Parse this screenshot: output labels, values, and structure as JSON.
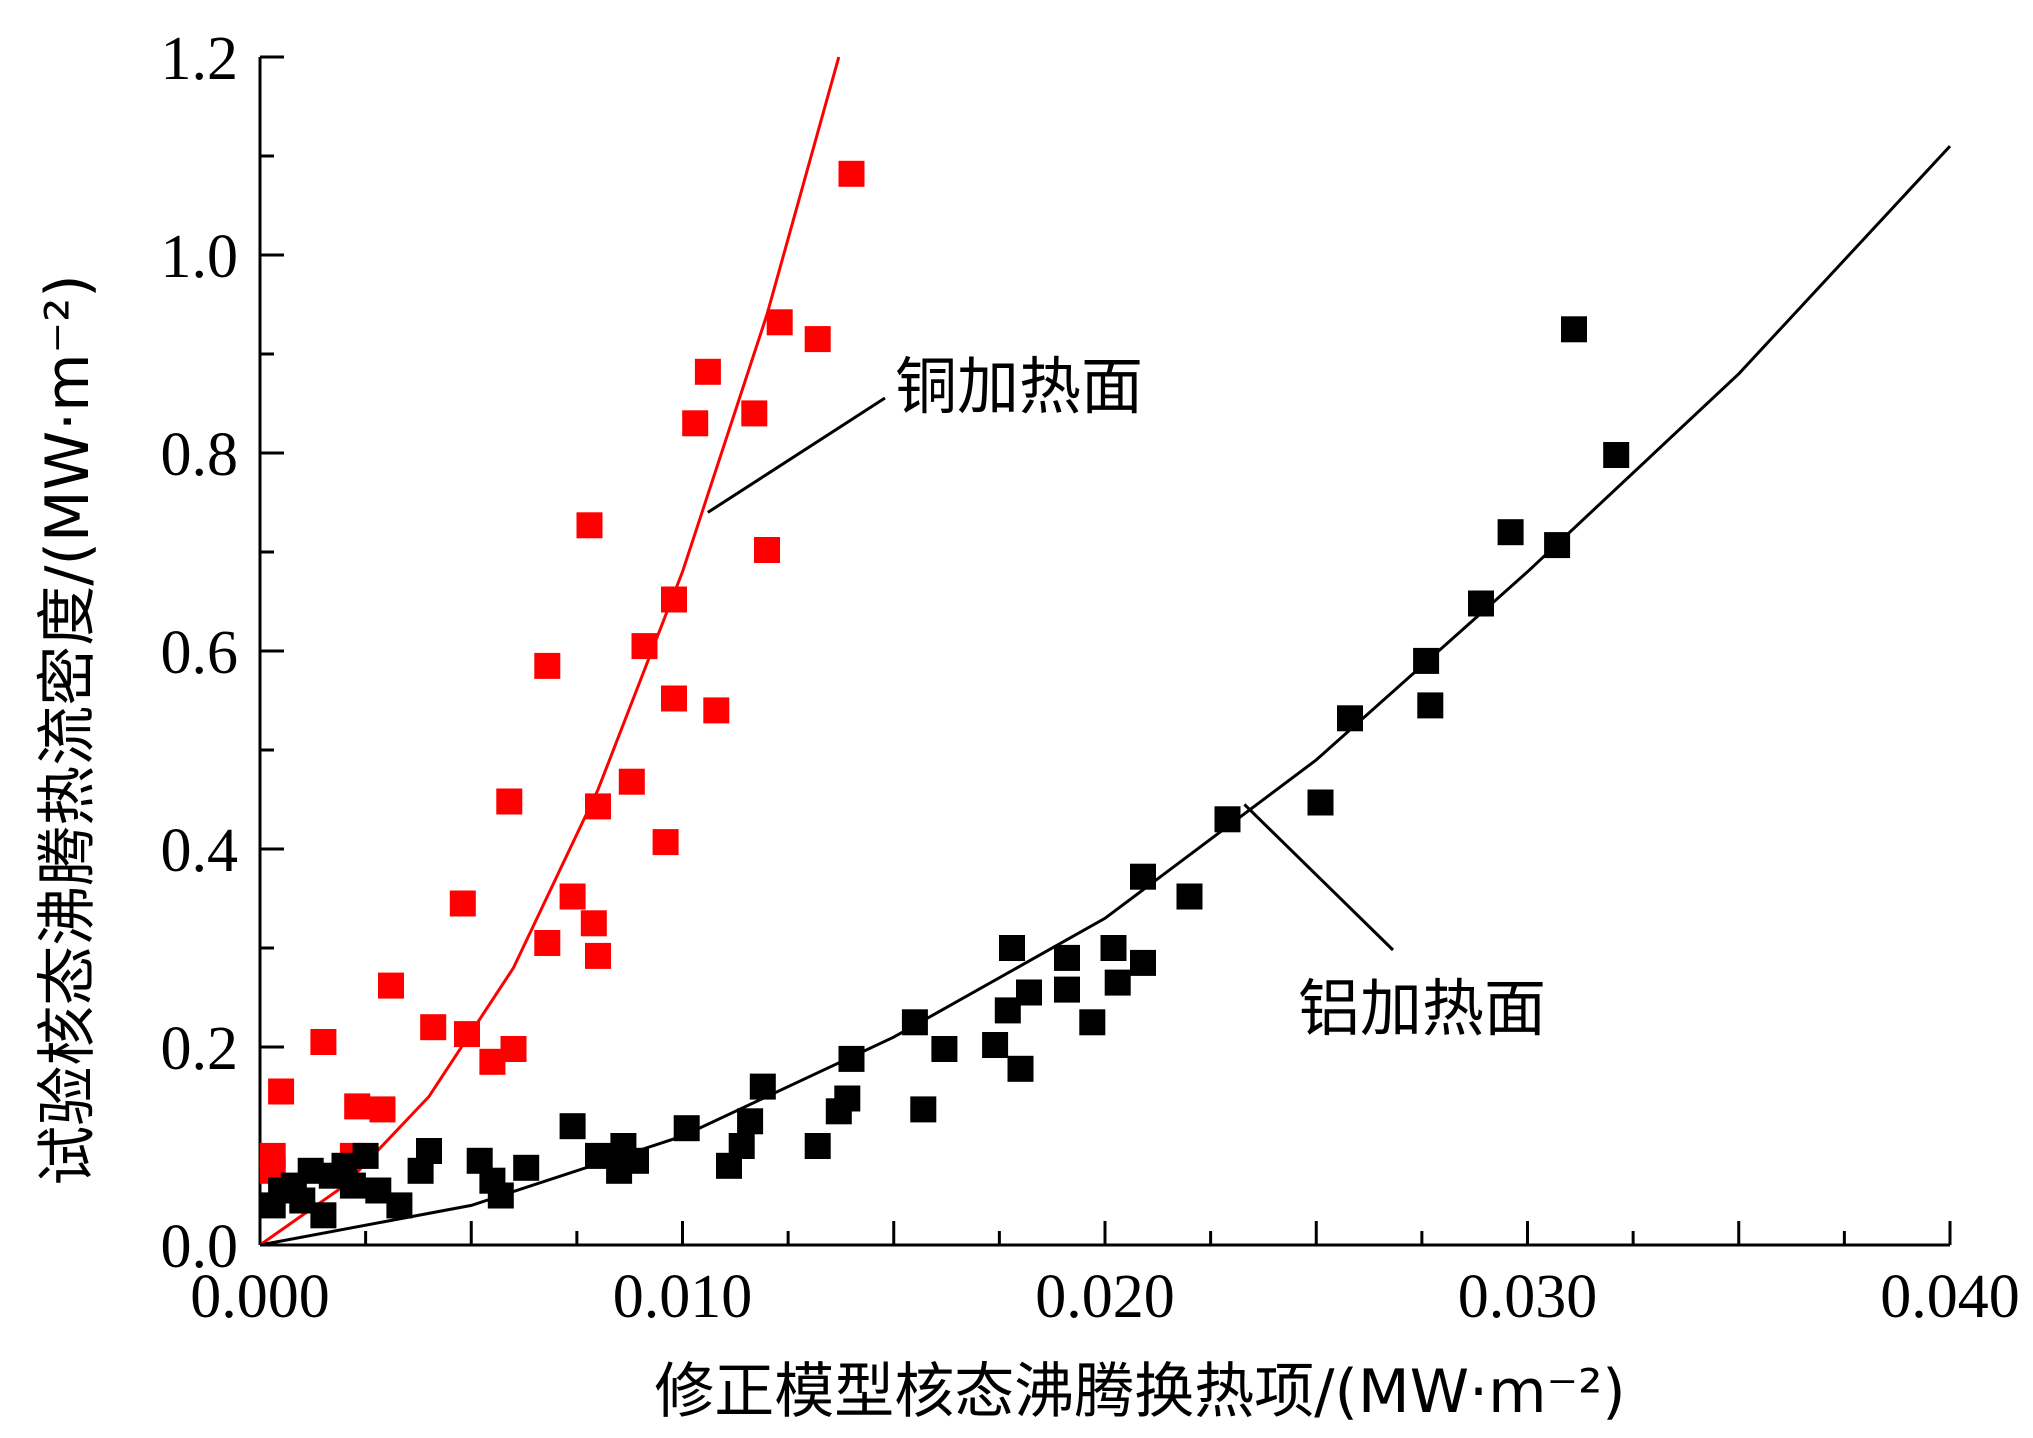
{
  "chart_data": {
    "type": "scatter",
    "xlabel": "修正模型核态沸腾换热项/(MW·m⁻²)",
    "ylabel": "试验核态沸腾热流密度/(MW·m⁻²)",
    "xlim": [
      0,
      0.04
    ],
    "ylim": [
      0,
      1.2
    ],
    "x_ticks": [
      "0.000",
      "0.010",
      "0.020",
      "0.030",
      "0.040"
    ],
    "y_ticks": [
      "0.0",
      "0.2",
      "0.4",
      "0.6",
      "0.8",
      "1.0",
      "1.2"
    ],
    "x_tick_values": [
      0,
      0.01,
      0.02,
      0.03,
      0.04
    ],
    "y_tick_values": [
      0,
      0.2,
      0.4,
      0.6,
      0.8,
      1.0,
      1.2
    ],
    "grid": false,
    "series": [
      {
        "name": "铜加热面",
        "color": "#ff0000",
        "points": [
          [
            0.0003,
            0.09
          ],
          [
            0.0003,
            0.075
          ],
          [
            0.0005,
            0.155
          ],
          [
            0.0015,
            0.205
          ],
          [
            0.0022,
            0.09
          ],
          [
            0.0023,
            0.14
          ],
          [
            0.0029,
            0.137
          ],
          [
            0.0031,
            0.262
          ],
          [
            0.0041,
            0.22
          ],
          [
            0.0048,
            0.345
          ],
          [
            0.0049,
            0.213
          ],
          [
            0.0055,
            0.185
          ],
          [
            0.0059,
            0.448
          ],
          [
            0.006,
            0.198
          ],
          [
            0.0068,
            0.305
          ],
          [
            0.0068,
            0.585
          ],
          [
            0.0074,
            0.352
          ],
          [
            0.0078,
            0.727
          ],
          [
            0.0079,
            0.325
          ],
          [
            0.008,
            0.443
          ],
          [
            0.008,
            0.292
          ],
          [
            0.0088,
            0.468
          ],
          [
            0.0091,
            0.605
          ],
          [
            0.0096,
            0.407
          ],
          [
            0.0098,
            0.652
          ],
          [
            0.0098,
            0.552
          ],
          [
            0.0103,
            0.83
          ],
          [
            0.0106,
            0.882
          ],
          [
            0.0108,
            0.54
          ],
          [
            0.0117,
            0.84
          ],
          [
            0.012,
            0.702
          ],
          [
            0.0123,
            0.932
          ],
          [
            0.0132,
            0.915
          ],
          [
            0.014,
            1.082
          ]
        ],
        "fit": [
          [
            0,
            0
          ],
          [
            0.002,
            0.06
          ],
          [
            0.004,
            0.15
          ],
          [
            0.006,
            0.28
          ],
          [
            0.008,
            0.46
          ],
          [
            0.01,
            0.68
          ],
          [
            0.012,
            0.94
          ],
          [
            0.0137,
            1.2
          ]
        ]
      },
      {
        "name": "铝加热面",
        "color": "#000000",
        "points": [
          [
            0.0003,
            0.04
          ],
          [
            0.0005,
            0.055
          ],
          [
            0.0008,
            0.06
          ],
          [
            0.001,
            0.045
          ],
          [
            0.0012,
            0.075
          ],
          [
            0.0015,
            0.03
          ],
          [
            0.0017,
            0.07
          ],
          [
            0.002,
            0.08
          ],
          [
            0.0022,
            0.06
          ],
          [
            0.0025,
            0.09
          ],
          [
            0.0028,
            0.055
          ],
          [
            0.0033,
            0.04
          ],
          [
            0.0038,
            0.075
          ],
          [
            0.004,
            0.095
          ],
          [
            0.0052,
            0.085
          ],
          [
            0.0055,
            0.065
          ],
          [
            0.0057,
            0.05
          ],
          [
            0.0063,
            0.078
          ],
          [
            0.0074,
            0.12
          ],
          [
            0.008,
            0.09
          ],
          [
            0.0085,
            0.075
          ],
          [
            0.0086,
            0.1
          ],
          [
            0.0089,
            0.085
          ],
          [
            0.0101,
            0.118
          ],
          [
            0.0111,
            0.08
          ],
          [
            0.0114,
            0.1
          ],
          [
            0.0116,
            0.125
          ],
          [
            0.0119,
            0.16
          ],
          [
            0.0132,
            0.1
          ],
          [
            0.0137,
            0.135
          ],
          [
            0.0139,
            0.148
          ],
          [
            0.014,
            0.188
          ],
          [
            0.0155,
            0.225
          ],
          [
            0.0157,
            0.137
          ],
          [
            0.0162,
            0.198
          ],
          [
            0.0174,
            0.202
          ],
          [
            0.0177,
            0.237
          ],
          [
            0.0178,
            0.3
          ],
          [
            0.018,
            0.178
          ],
          [
            0.0182,
            0.255
          ],
          [
            0.0191,
            0.29
          ],
          [
            0.0191,
            0.258
          ],
          [
            0.0197,
            0.225
          ],
          [
            0.0202,
            0.3
          ],
          [
            0.0203,
            0.265
          ],
          [
            0.0209,
            0.372
          ],
          [
            0.0209,
            0.285
          ],
          [
            0.022,
            0.352
          ],
          [
            0.0229,
            0.43
          ],
          [
            0.0251,
            0.447
          ],
          [
            0.0258,
            0.532
          ],
          [
            0.0276,
            0.59
          ],
          [
            0.0277,
            0.545
          ],
          [
            0.0289,
            0.648
          ],
          [
            0.0296,
            0.72
          ],
          [
            0.0307,
            0.707
          ],
          [
            0.0311,
            0.925
          ],
          [
            0.0321,
            0.798
          ]
        ],
        "fit": [
          [
            0,
            0
          ],
          [
            0.005,
            0.04
          ],
          [
            0.01,
            0.11
          ],
          [
            0.015,
            0.21
          ],
          [
            0.02,
            0.33
          ],
          [
            0.025,
            0.49
          ],
          [
            0.03,
            0.68
          ],
          [
            0.035,
            0.88
          ],
          [
            0.04,
            1.11
          ]
        ]
      }
    ],
    "annotations": [
      {
        "text": "铜加热面",
        "series": "铜加热面"
      },
      {
        "text": "铝加热面",
        "series": "铝加热面"
      }
    ]
  }
}
